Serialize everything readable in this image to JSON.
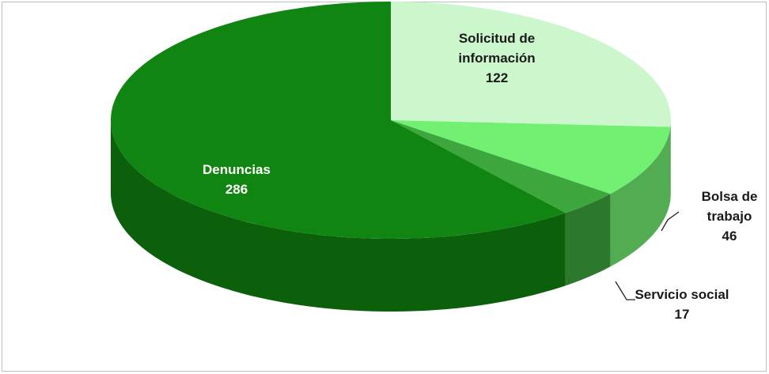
{
  "chart_data": {
    "type": "pie",
    "categories": [
      "Solicitud de información",
      "Bolsa de trabajo",
      "Servicio social",
      "Denuncias"
    ],
    "values": [
      122,
      46,
      17,
      286
    ],
    "colors": [
      "#ccf7cc",
      "#72f072",
      "#3da63d",
      "#118511"
    ]
  }
}
